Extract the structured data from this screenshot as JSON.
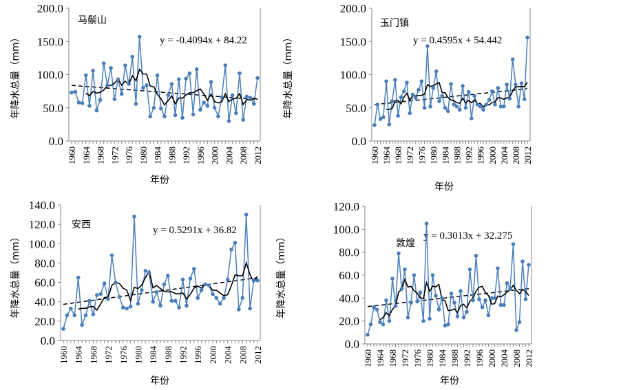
{
  "chart_data": [
    {
      "type": "line",
      "title": "马鬃山",
      "xlabel": "年份",
      "ylabel": "年降水总量（mm）",
      "ylim": [
        0,
        200
      ],
      "ytick_step": 50,
      "x_start": 1960,
      "x_end": 2012,
      "xtick_step": 4,
      "equation": "y = -0.4094x + 84.22",
      "trend": {
        "slope": -0.4094,
        "intercept": 84.22
      },
      "moving_average_window": 5,
      "values": [
        73,
        74,
        58,
        57,
        99,
        53,
        106,
        46,
        62,
        117,
        84,
        110,
        63,
        93,
        71,
        114,
        86,
        127,
        56,
        157,
        80,
        84,
        37,
        50,
        99,
        49,
        37,
        69,
        86,
        39,
        93,
        35,
        94,
        102,
        40,
        108,
        47,
        58,
        53,
        89,
        50,
        37,
        66,
        114,
        30,
        69,
        42,
        102,
        32,
        67,
        65,
        56,
        95
      ]
    },
    {
      "type": "line",
      "title": "玉门镇",
      "xlabel": "年份",
      "ylabel": "年降水总量（mm）",
      "ylim": [
        0,
        200
      ],
      "ytick_step": 50,
      "x_start": 1960,
      "x_end": 2012,
      "xtick_step": 4,
      "equation": "y = 0.4595x + 54.442",
      "trend": {
        "slope": 0.4595,
        "intercept": 54.442
      },
      "moving_average_window": 5,
      "values": [
        24,
        55,
        33,
        36,
        90,
        25,
        60,
        92,
        38,
        66,
        75,
        88,
        42,
        70,
        65,
        77,
        90,
        50,
        143,
        52,
        80,
        105,
        60,
        68,
        50,
        45,
        86,
        55,
        52,
        47,
        83,
        50,
        74,
        34,
        68,
        55,
        52,
        47,
        55,
        62,
        75,
        55,
        80,
        52,
        52,
        85,
        64,
        123,
        85,
        52,
        87,
        63,
        156
      ]
    },
    {
      "type": "line",
      "title": "安西",
      "xlabel": "年份",
      "ylabel": "年降水总量（mm）",
      "ylim": [
        0,
        140
      ],
      "ytick_step": 20,
      "x_start": 1960,
      "x_end": 2012,
      "xtick_step": 4,
      "equation": "y = 0.5291x + 36.82",
      "trend": {
        "slope": 0.5291,
        "intercept": 36.82
      },
      "moving_average_window": 5,
      "values": [
        12,
        26,
        33,
        26,
        65,
        16,
        26,
        41,
        27,
        47,
        48,
        59,
        43,
        88,
        60,
        45,
        34,
        33,
        35,
        128,
        38,
        52,
        72,
        70,
        40,
        50,
        36,
        58,
        67,
        41,
        41,
        34,
        63,
        36,
        64,
        74,
        44,
        52,
        58,
        57,
        48,
        44,
        38,
        44,
        63,
        94,
        101,
        32,
        44,
        130,
        33,
        62,
        62
      ]
    },
    {
      "type": "line",
      "title": "敦煌",
      "xlabel": "年份",
      "ylabel": "年降水总量（mm）",
      "ylim": [
        0,
        120
      ],
      "ytick_step": 20,
      "x_start": 1960,
      "x_end": 2012,
      "xtick_step": 4,
      "equation": "y = 0.3013x + 32.275",
      "trend": {
        "slope": 0.3013,
        "intercept": 32.275
      },
      "moving_average_window": 5,
      "values": [
        8,
        17,
        32,
        30,
        19,
        17,
        38,
        20,
        57,
        33,
        79,
        48,
        65,
        23,
        36,
        60,
        37,
        45,
        20,
        105,
        22,
        60,
        42,
        30,
        40,
        16,
        17,
        44,
        36,
        24,
        46,
        23,
        28,
        65,
        38,
        77,
        39,
        32,
        38,
        25,
        40,
        40,
        66,
        34,
        34,
        53,
        48,
        87,
        12,
        19,
        72,
        39,
        69
      ]
    }
  ],
  "colors": {
    "series": "#4a7ebb",
    "moving_average": "#000000",
    "trend": "#000000",
    "axis": "#868686"
  }
}
